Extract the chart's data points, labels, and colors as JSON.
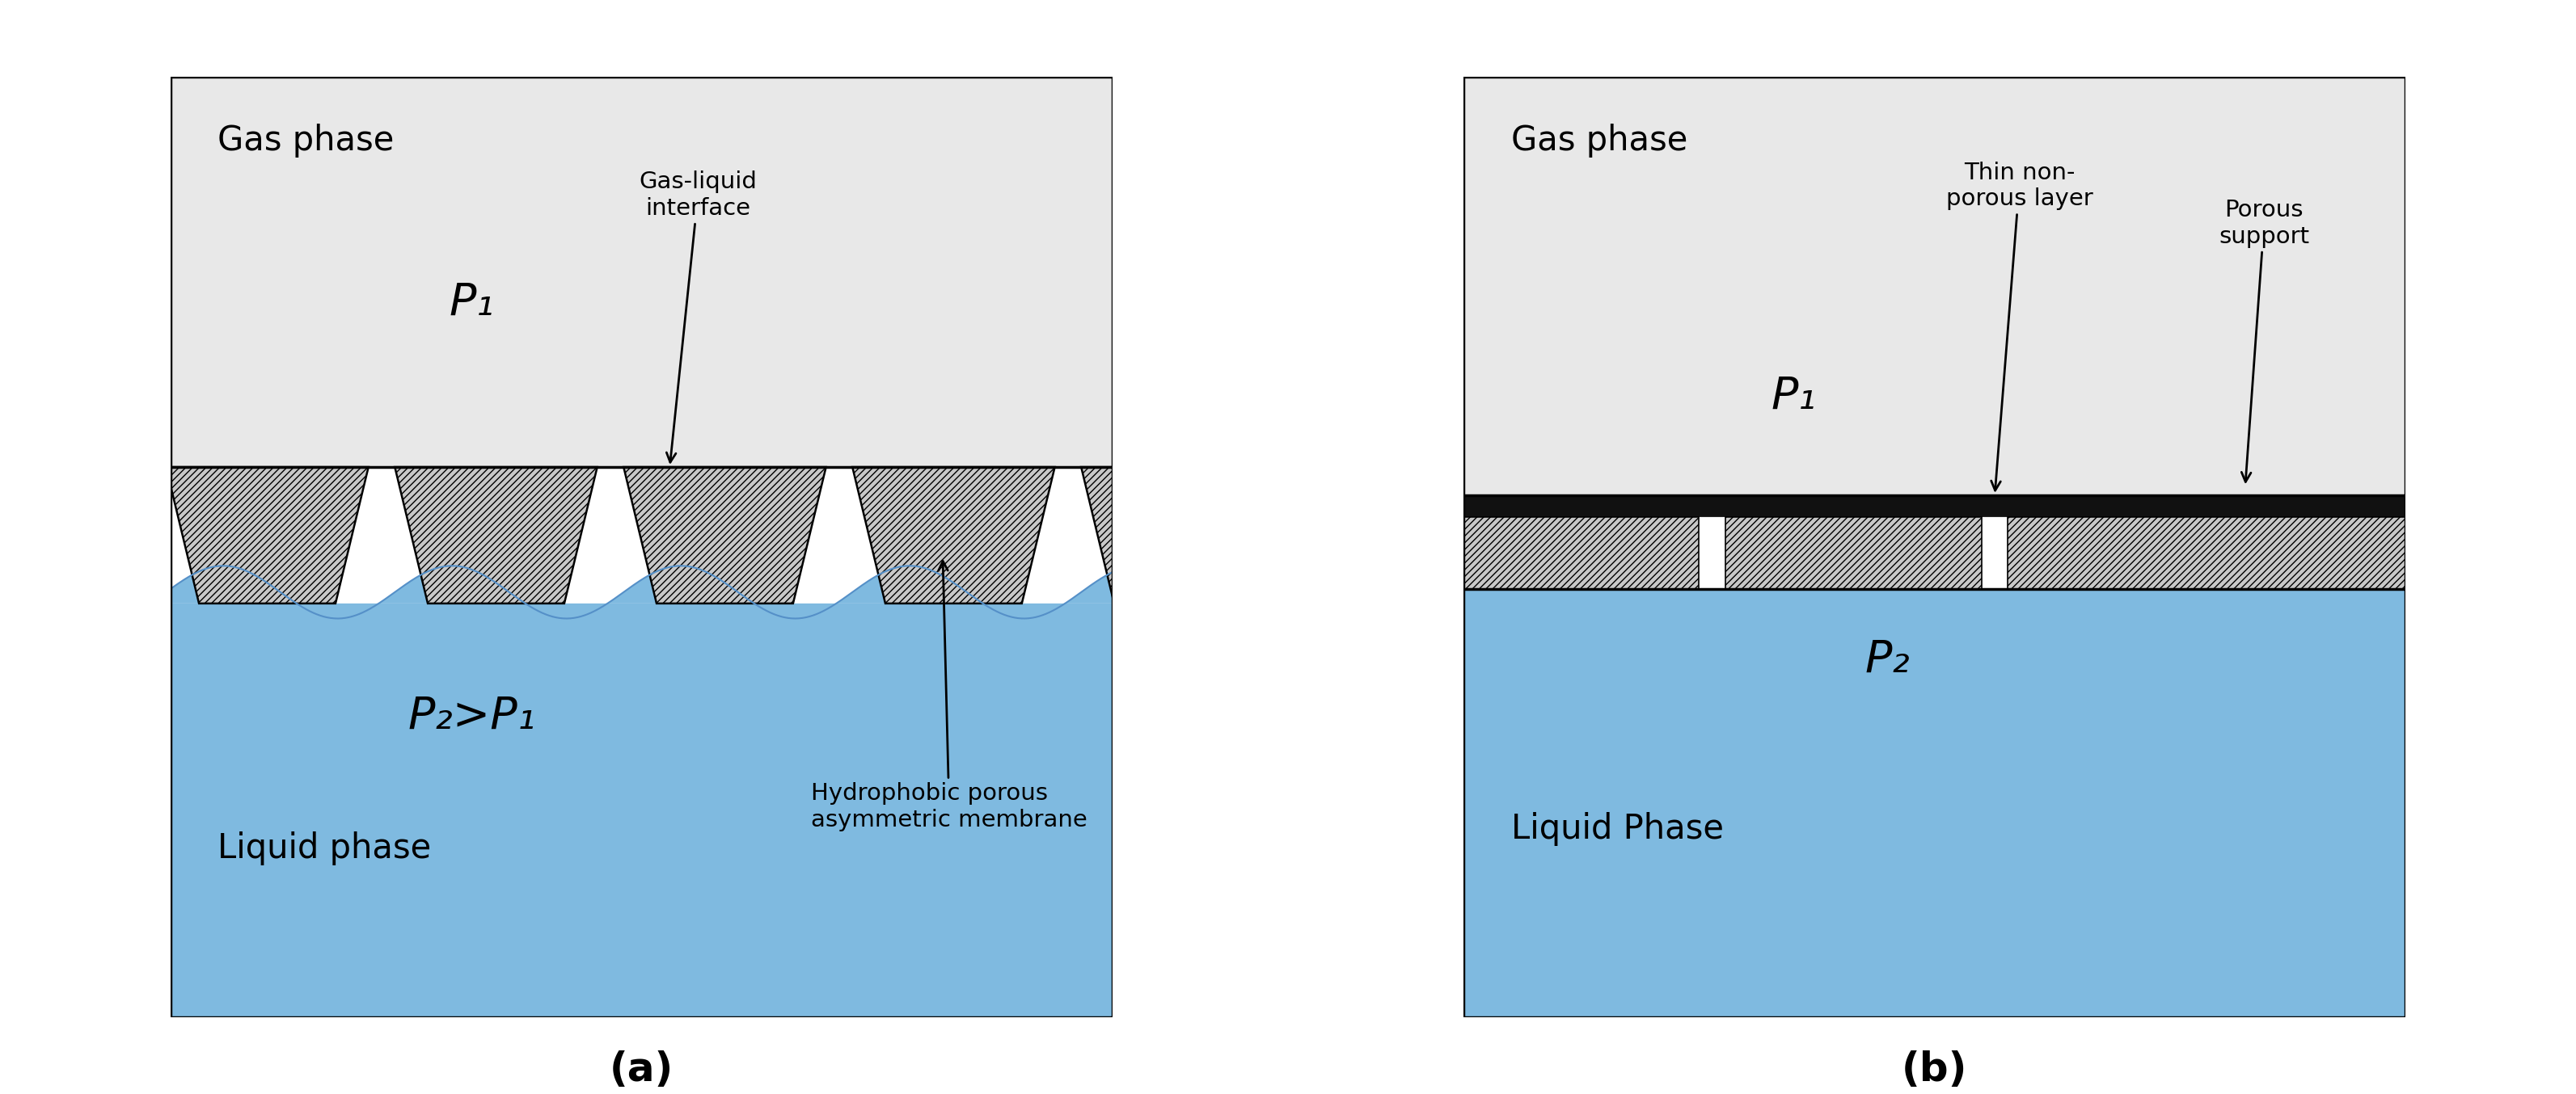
{
  "fig_width": 31.86,
  "fig_height": 13.54,
  "bg_color": "#ffffff",
  "gas_color": "#e8e8e8",
  "liquid_color": "#7fbae0",
  "membrane_face_color": "#c8c8c8",
  "membrane_edge_color": "#000000",
  "black_layer_color": "#111111",
  "panel_a": {
    "title": "(a)",
    "gas_label": "Gas phase",
    "liquid_label": "Liquid phase",
    "p1_label": "P₁",
    "p2_label": "P₂>P₁",
    "annotation1_text": "Gas-liquid\ninterface",
    "annotation2_text": "Hydrophobic porous\nasymmetric membrane"
  },
  "panel_b": {
    "title": "(b)",
    "gas_label": "Gas phase",
    "liquid_label": "Liquid Phase",
    "p1_label": "P₁",
    "p2_label": "P₂",
    "annotation1_text": "Thin non-\nporous layer",
    "annotation2_text": "Porous\nsupport"
  },
  "font_size_label": 30,
  "font_size_p": 40,
  "font_size_annotation": 21,
  "font_size_title": 36
}
